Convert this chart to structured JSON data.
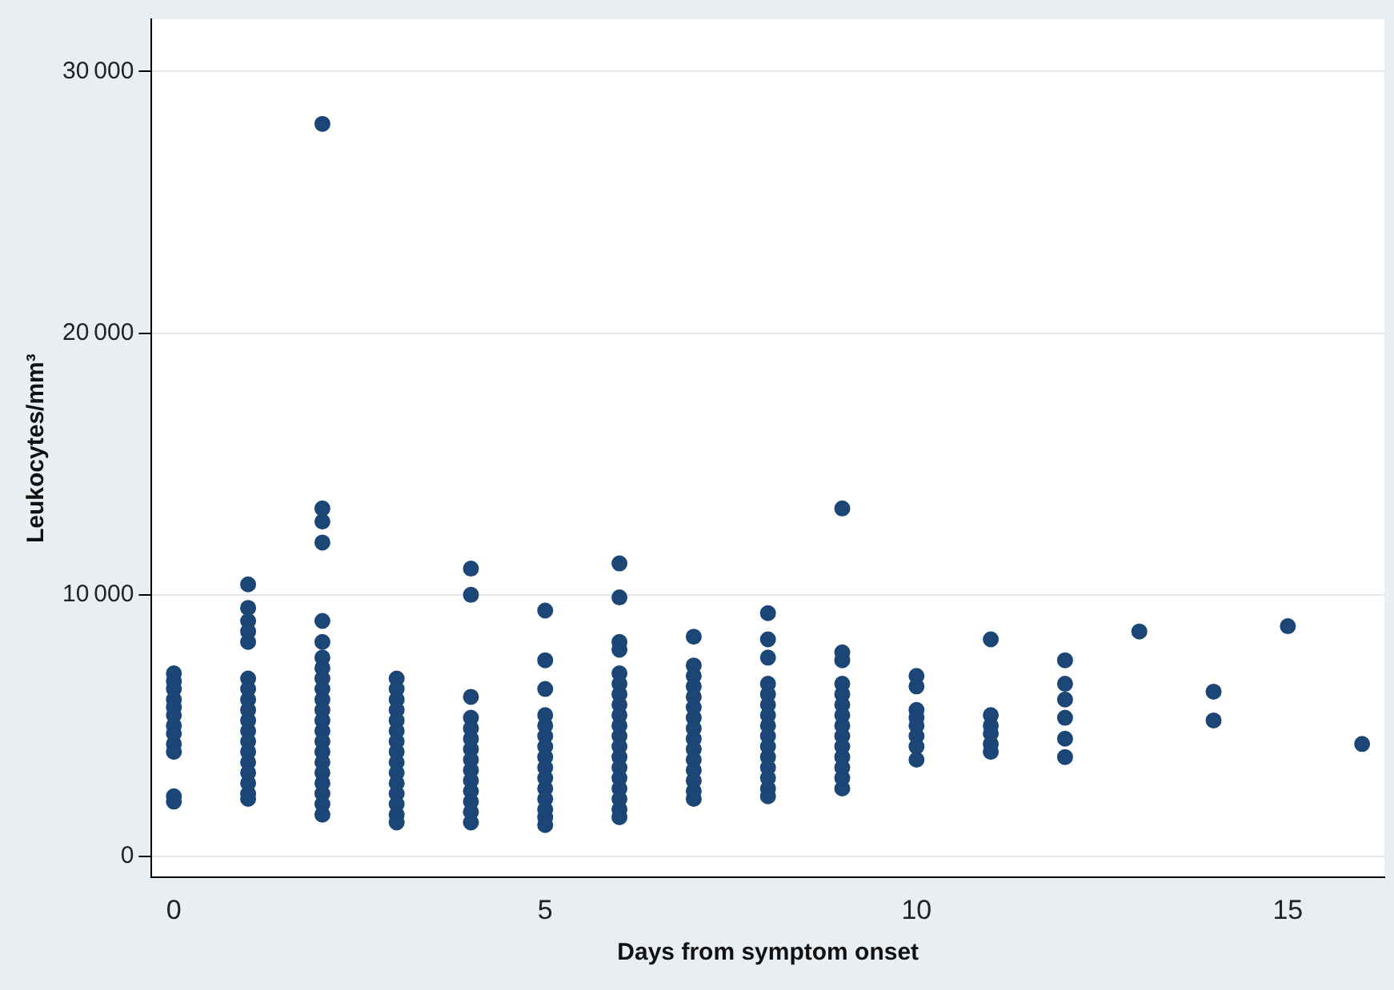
{
  "chart_data": {
    "type": "scatter",
    "xlabel": "Days from symptom onset",
    "ylabel": "Leukocytes/mm³",
    "xlim": [
      -0.3,
      16.3
    ],
    "xticks": [
      0,
      5,
      10,
      15
    ],
    "ylim": [
      -800,
      32000
    ],
    "yticks": [
      0,
      10000,
      20000,
      30000
    ],
    "grid": "y",
    "legend": false,
    "marker": "circle",
    "series": [
      {
        "color": "#1b4676",
        "x": [
          0,
          0,
          0,
          0,
          0,
          0,
          0,
          0,
          0,
          0,
          0,
          0,
          1,
          1,
          1,
          1,
          1,
          1,
          1,
          1,
          1,
          1,
          1,
          1,
          1,
          1,
          1,
          1,
          1,
          1,
          2,
          2,
          2,
          2,
          2,
          2,
          2,
          2,
          2,
          2,
          2,
          2,
          2,
          2,
          2,
          2,
          2,
          2,
          2,
          2,
          2,
          2,
          3,
          3,
          3,
          3,
          3,
          3,
          3,
          3,
          3,
          3,
          3,
          3,
          3,
          3,
          3,
          4,
          4,
          4,
          4,
          4,
          4,
          4,
          4,
          4,
          4,
          4,
          4,
          4,
          4,
          5,
          5,
          5,
          5,
          5,
          5,
          5,
          5,
          5,
          5,
          5,
          5,
          5,
          5,
          5,
          6,
          6,
          6,
          6,
          6,
          6,
          6,
          6,
          6,
          6,
          6,
          6,
          6,
          6,
          6,
          6,
          6,
          6,
          6,
          7,
          7,
          7,
          7,
          7,
          7,
          7,
          7,
          7,
          7,
          7,
          7,
          7,
          7,
          7,
          8,
          8,
          8,
          8,
          8,
          8,
          8,
          8,
          8,
          8,
          8,
          8,
          8,
          8,
          8,
          9,
          9,
          9,
          9,
          9,
          9,
          9,
          9,
          9,
          9,
          9,
          9,
          9,
          9,
          10,
          10,
          10,
          10,
          10,
          10,
          10,
          10,
          11,
          11,
          11,
          11,
          11,
          11,
          12,
          12,
          12,
          12,
          12,
          12,
          13,
          14,
          14,
          15,
          16
        ],
        "values": [
          7000,
          6700,
          6400,
          6000,
          5700,
          5400,
          5000,
          4700,
          4300,
          4000,
          2300,
          2100,
          10400,
          9500,
          9000,
          8600,
          8200,
          6800,
          6400,
          6000,
          5600,
          5200,
          4800,
          4400,
          4000,
          3600,
          3200,
          2800,
          2400,
          2200,
          28000,
          13300,
          12800,
          12000,
          9000,
          8200,
          7600,
          7200,
          6800,
          6400,
          6000,
          5600,
          5200,
          4800,
          4400,
          4000,
          3600,
          3200,
          2800,
          2400,
          2000,
          1600,
          6800,
          6400,
          6000,
          5600,
          5200,
          4800,
          4400,
          4000,
          3600,
          3200,
          2800,
          2400,
          2000,
          1600,
          1300,
          11000,
          10000,
          6100,
          5300,
          4900,
          4500,
          4100,
          3700,
          3300,
          2900,
          2500,
          2100,
          1700,
          1300,
          9400,
          7500,
          6400,
          5400,
          5000,
          4600,
          4200,
          3800,
          3400,
          3000,
          2600,
          2200,
          1800,
          1500,
          1200,
          11200,
          9900,
          8200,
          7900,
          7000,
          6600,
          6200,
          5800,
          5400,
          5000,
          4600,
          4200,
          3800,
          3400,
          3000,
          2600,
          2200,
          1800,
          1500,
          8400,
          7300,
          6900,
          6500,
          6100,
          5700,
          5300,
          4900,
          4500,
          4100,
          3700,
          3300,
          2900,
          2500,
          2200,
          9300,
          8300,
          7600,
          6600,
          6200,
          5800,
          5400,
          5000,
          4600,
          4200,
          3800,
          3400,
          3000,
          2600,
          2300,
          13300,
          7800,
          7500,
          6600,
          6200,
          5800,
          5400,
          5000,
          4600,
          4200,
          3800,
          3400,
          3000,
          2600,
          6900,
          6500,
          5600,
          5300,
          5000,
          4600,
          4200,
          3700,
          8300,
          5400,
          5000,
          4700,
          4300,
          4000,
          7500,
          6600,
          6000,
          5300,
          4500,
          3800,
          8600,
          6300,
          5200,
          8800,
          4300
        ]
      }
    ]
  }
}
